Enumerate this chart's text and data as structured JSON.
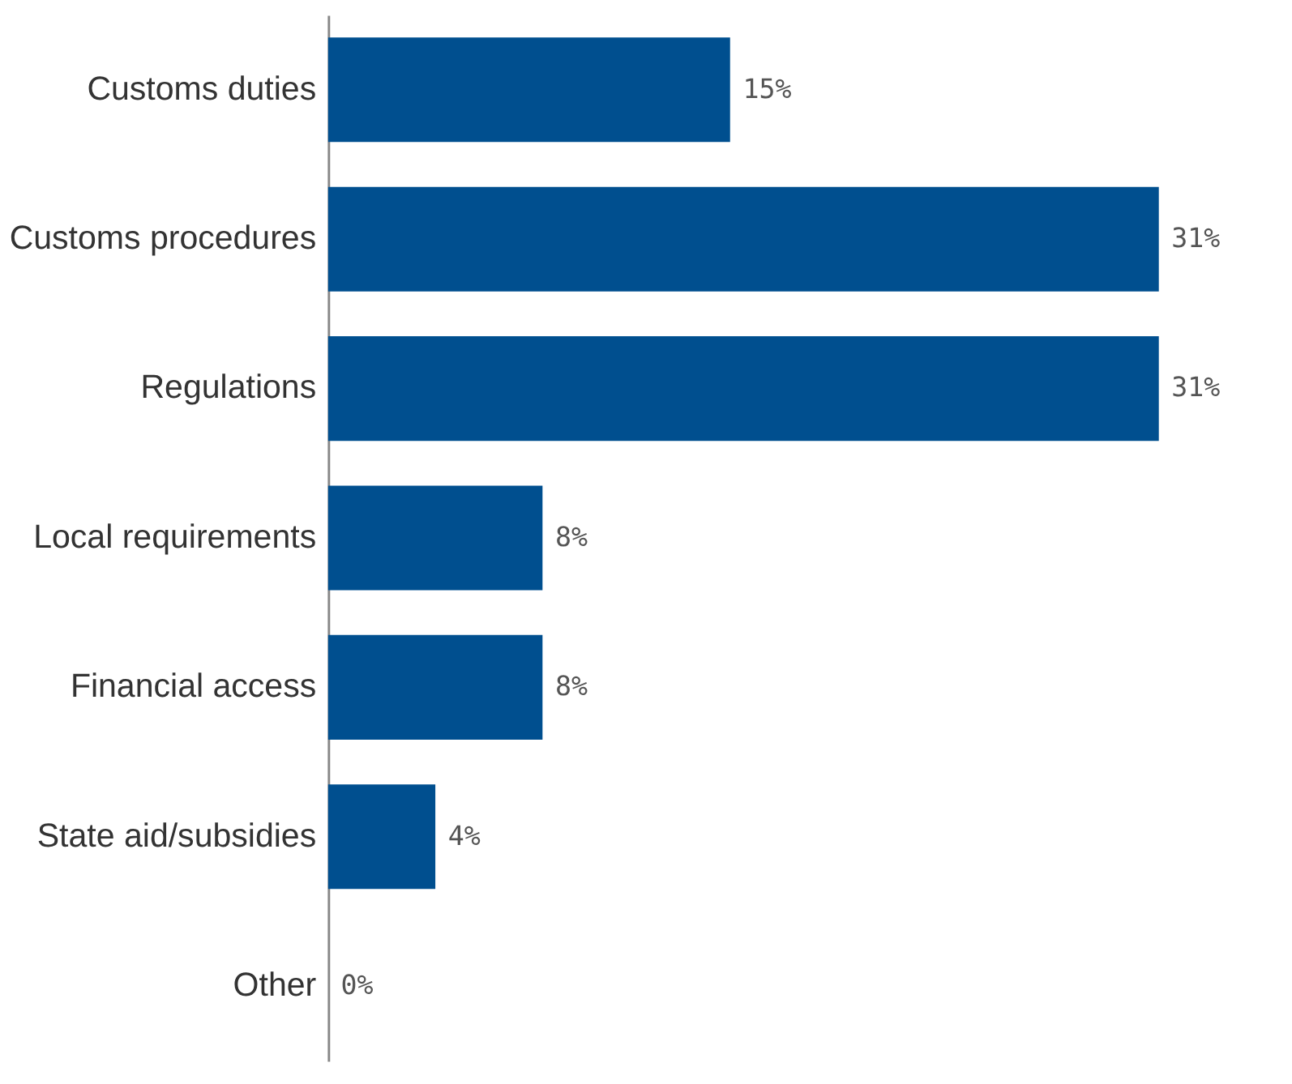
{
  "chart_data": {
    "type": "bar",
    "orientation": "horizontal",
    "categories": [
      "Customs duties",
      "Customs procedures",
      "Regulations",
      "Local requirements",
      "Financial access",
      "State aid/subsidies",
      "Other"
    ],
    "values": [
      15,
      31,
      31,
      8,
      8,
      4,
      0
    ],
    "value_labels": [
      "15%",
      "31%",
      "31%",
      "8%",
      "8%",
      "4%",
      "0%"
    ],
    "color": "#004f8f",
    "tick_labels": "y"
  }
}
